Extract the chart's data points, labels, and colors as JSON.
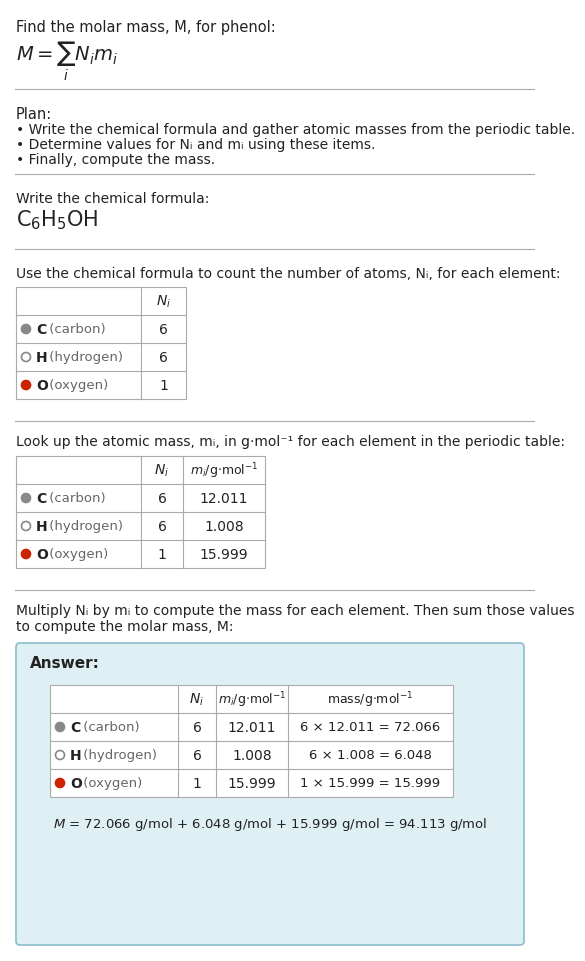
{
  "bg_color": "#ffffff",
  "title_text": "Find the molar mass, M, for phenol:",
  "plan_header": "Plan:",
  "plan_items": [
    "• Write the chemical formula and gather atomic masses from the periodic table.",
    "• Determine values for Nᵢ and mᵢ using these items.",
    "• Finally, compute the mass."
  ],
  "step1_header": "Write the chemical formula:",
  "step2_header": "Use the chemical formula to count the number of atoms, Nᵢ, for each element:",
  "step3_header": "Look up the atomic mass, mᵢ, in g·mol⁻¹ for each element in the periodic table:",
  "step4_header": "Multiply Nᵢ by mᵢ to compute the mass for each element. Then sum those values\nto compute the molar mass, M:",
  "answer_header": "Answer:",
  "elements": [
    "C (carbon)",
    "H (hydrogen)",
    "O (oxygen)"
  ],
  "element_symbols": [
    "C",
    "H",
    "O"
  ],
  "element_labels": [
    " (carbon)",
    " (hydrogen)",
    " (oxygen)"
  ],
  "element_colors": [
    "#888888",
    "#ffffff",
    "#cc2200"
  ],
  "element_outline": [
    "#888888",
    "#888888",
    "#cc2200"
  ],
  "H_hollow": [
    false,
    true,
    false
  ],
  "Ni": [
    6,
    6,
    1
  ],
  "mi": [
    "12.011",
    "1.008",
    "15.999"
  ],
  "mass_labels": [
    "6 × 12.011 = 72.066",
    "6 × 1.008 = 6.048",
    "1 × 15.999 = 15.999"
  ],
  "final_eq": "$M$ = 72.066 g/mol + 6.048 g/mol + 15.999 g/mol = 94.113 g/mol",
  "answer_bg": "#dff0f5",
  "answer_border": "#8bbccc",
  "text_color": "#222222",
  "sep_color": "#aaaaaa",
  "table_color": "#aaaaaa"
}
